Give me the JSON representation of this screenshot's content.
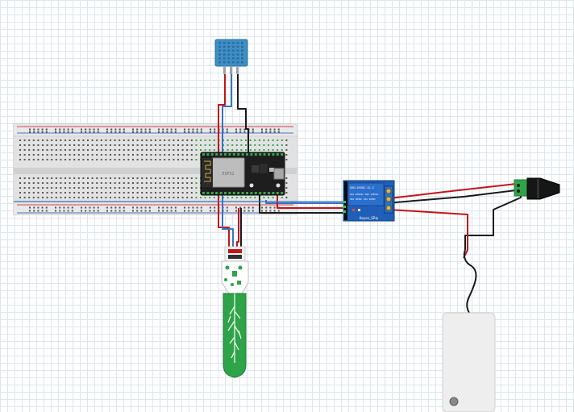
{
  "relay_module": {
    "model_text": "SRD-05VDC-SL-C",
    "rating_line_1": "10A 250VAC 10A 125VAC",
    "rating_line_2": "10A 30VDC 10A 28VDC",
    "label": "Keyes_SRly"
  },
  "esp32": {
    "board_text": "ESP32"
  },
  "wire_colors": {
    "red": "#c0151b",
    "black": "#1a1a1a",
    "blue": "#3a73c4"
  },
  "component_colors": {
    "breadboard": "#e4e4e4",
    "dht_sensor": "#3d8fc7",
    "relay_board": "#1f5fb8",
    "soil_probe": "#2ea34a",
    "pump": "#eeeeee"
  }
}
